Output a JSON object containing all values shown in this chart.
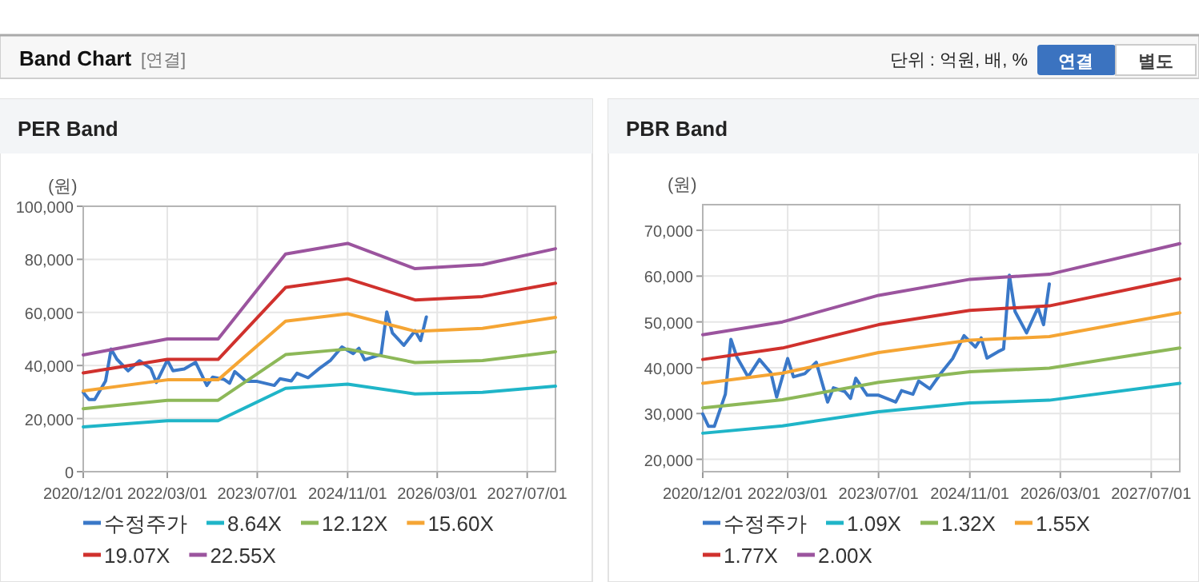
{
  "chart_data": [
    {
      "type": "other",
      "title": "Band Chart",
      "annotations": [
        "[연결]",
        "단위 : 억원, 배, %",
        "연결",
        "별도"
      ]
    },
    {
      "type": "line",
      "title": "PER Band",
      "ylabel": "(원)",
      "grid": true,
      "legend": "bottom",
      "xlim": [
        "2020-12-01",
        "2027-12-01"
      ],
      "xticks": [
        {
          "value": "2020-12-01",
          "label": "2020/12/01"
        },
        {
          "value": "2022-03-01",
          "label": "2022/03/01"
        },
        {
          "value": "2023-07-01",
          "label": "2023/07/01"
        },
        {
          "value": "2024-11-01",
          "label": "2024/11/01"
        },
        {
          "value": "2026-03-01",
          "label": "2026/03/01"
        },
        {
          "value": "2027-07-01",
          "label": "2027/07/01"
        }
      ],
      "ylim": [
        0,
        100000
      ],
      "yticks": [
        0,
        {
          "value": 20000,
          "label": "20,000"
        },
        {
          "value": 40000,
          "label": "40,000"
        },
        {
          "value": 60000,
          "label": "60,000"
        },
        {
          "value": 80000,
          "label": "80,000"
        },
        {
          "value": 100000,
          "label": "100,000"
        }
      ],
      "series": [
        {
          "name": "수정주가",
          "color": "#3a78c8",
          "x": [
            "2020-12",
            "2021-01",
            "2021-02",
            "2021-04",
            "2021-05",
            "2021-06",
            "2021-08",
            "2021-10",
            "2021-12",
            "2022-01",
            "2022-03",
            "2022-04",
            "2022-06",
            "2022-08",
            "2022-10",
            "2022-11",
            "2023-01",
            "2023-02",
            "2023-03",
            "2023-05",
            "2023-07",
            "2023-10",
            "2023-11",
            "2024-01",
            "2024-02",
            "2024-04",
            "2024-06",
            "2024-08",
            "2024-10",
            "2024-12",
            "2025-01",
            "2025-02",
            "2025-04",
            "2025-05",
            "2025-06",
            "2025-07",
            "2025-09",
            "2025-11",
            "2025-12",
            "2026-01"
          ],
          "values": [
            29900,
            27200,
            27200,
            34200,
            46200,
            42400,
            38000,
            41800,
            38900,
            33600,
            42000,
            38000,
            38700,
            41200,
            32500,
            35600,
            34800,
            33300,
            37700,
            34000,
            34000,
            32500,
            35000,
            34200,
            37100,
            35400,
            38900,
            42000,
            47000,
            44500,
            46500,
            42100,
            43500,
            44100,
            60200,
            52300,
            47600,
            53100,
            49400,
            58300
          ]
        },
        {
          "name": "8.64X",
          "color": "#1fb5c8",
          "x": [
            "2020-12",
            "2022-03",
            "2022-12",
            "2023-12",
            "2024-11",
            "2025-11",
            "2026-11",
            "2027-12"
          ],
          "values": [
            16900,
            19200,
            19200,
            31400,
            33000,
            29300,
            29900,
            32200
          ]
        },
        {
          "name": "12.12X",
          "color": "#8db858",
          "x": [
            "2020-12",
            "2022-03",
            "2022-12",
            "2023-12",
            "2024-11",
            "2025-11",
            "2026-11",
            "2027-12"
          ],
          "values": [
            23700,
            26900,
            26900,
            44100,
            46200,
            41100,
            41900,
            45200
          ]
        },
        {
          "name": "15.60X",
          "color": "#f5a534",
          "x": [
            "2020-12",
            "2022-03",
            "2022-12",
            "2023-12",
            "2024-11",
            "2025-11",
            "2026-11",
            "2027-12"
          ],
          "values": [
            30400,
            34600,
            34600,
            56700,
            59500,
            52900,
            54000,
            58100
          ]
        },
        {
          "name": "19.07X",
          "color": "#d0312d",
          "x": [
            "2020-12",
            "2022-03",
            "2022-12",
            "2023-12",
            "2024-11",
            "2025-11",
            "2026-11",
            "2027-12"
          ],
          "values": [
            37200,
            42300,
            42300,
            69400,
            72700,
            64700,
            66000,
            71000
          ]
        },
        {
          "name": "22.55X",
          "color": "#9b549e",
          "x": [
            "2020-12",
            "2022-03",
            "2022-12",
            "2023-12",
            "2024-11",
            "2025-11",
            "2026-11",
            "2027-12"
          ],
          "values": [
            44000,
            50000,
            50000,
            82000,
            86000,
            76500,
            78000,
            84000
          ]
        }
      ]
    },
    {
      "type": "line",
      "title": "PBR Band",
      "ylabel": "(원)",
      "grid": true,
      "legend": "bottom",
      "xlim": [
        "2020-12-01",
        "2027-12-01"
      ],
      "xticks": [
        {
          "value": "2020-12-01",
          "label": "2020/12/01"
        },
        {
          "value": "2022-03-01",
          "label": "2022/03/01"
        },
        {
          "value": "2023-07-01",
          "label": "2023/07/01"
        },
        {
          "value": "2024-11-01",
          "label": "2024/11/01"
        },
        {
          "value": "2026-03-01",
          "label": "2026/03/01"
        },
        {
          "value": "2027-07-01",
          "label": "2027/07/01"
        }
      ],
      "ylim": [
        17300,
        75600
      ],
      "yticks": [
        {
          "value": 20000,
          "label": "20,000"
        },
        {
          "value": 30000,
          "label": "30,000"
        },
        {
          "value": 40000,
          "label": "40,000"
        },
        {
          "value": 50000,
          "label": "50,000"
        },
        {
          "value": 60000,
          "label": "60,000"
        },
        {
          "value": 70000,
          "label": "70,000"
        }
      ],
      "series": [
        {
          "name": "수정주가",
          "color": "#3a78c8",
          "x": [
            "2020-12",
            "2021-01",
            "2021-02",
            "2021-04",
            "2021-05",
            "2021-06",
            "2021-08",
            "2021-10",
            "2021-12",
            "2022-01",
            "2022-03",
            "2022-04",
            "2022-06",
            "2022-08",
            "2022-10",
            "2022-11",
            "2023-01",
            "2023-02",
            "2023-03",
            "2023-05",
            "2023-07",
            "2023-10",
            "2023-11",
            "2024-01",
            "2024-02",
            "2024-04",
            "2024-06",
            "2024-08",
            "2024-10",
            "2024-12",
            "2025-01",
            "2025-02",
            "2025-04",
            "2025-05",
            "2025-06",
            "2025-07",
            "2025-09",
            "2025-11",
            "2025-12",
            "2026-01"
          ],
          "values": [
            29900,
            27200,
            27200,
            34200,
            46200,
            42400,
            38000,
            41800,
            38900,
            33600,
            42000,
            38000,
            38700,
            41200,
            32500,
            35600,
            34800,
            33300,
            37700,
            34000,
            34000,
            32500,
            35000,
            34200,
            37100,
            35400,
            38900,
            42000,
            47000,
            44500,
            46500,
            42100,
            43500,
            44100,
            60200,
            52300,
            47600,
            53100,
            49400,
            58300
          ]
        },
        {
          "name": "1.09X",
          "color": "#1fb5c8",
          "x": [
            "2020-12",
            "2022-02",
            "2023-07",
            "2024-11",
            "2026-01",
            "2027-12"
          ],
          "values": [
            25700,
            27300,
            30400,
            32300,
            32900,
            36600
          ]
        },
        {
          "name": "1.32X",
          "color": "#8db858",
          "x": [
            "2020-12",
            "2022-02",
            "2023-07",
            "2024-11",
            "2026-01",
            "2027-12"
          ],
          "values": [
            31200,
            33000,
            36800,
            39100,
            39900,
            44300
          ]
        },
        {
          "name": "1.55X",
          "color": "#f5a534",
          "x": [
            "2020-12",
            "2022-02",
            "2023-07",
            "2024-11",
            "2026-01",
            "2027-12"
          ],
          "values": [
            36600,
            38800,
            43300,
            46000,
            46800,
            52000
          ]
        },
        {
          "name": "1.77X",
          "color": "#d0312d",
          "x": [
            "2020-12",
            "2022-02",
            "2023-07",
            "2024-11",
            "2026-01",
            "2027-12"
          ],
          "values": [
            41800,
            44300,
            49400,
            52500,
            53500,
            59400
          ]
        },
        {
          "name": "2.00X",
          "color": "#9b549e",
          "x": [
            "2020-12",
            "2022-02",
            "2023-07",
            "2024-11",
            "2026-01",
            "2027-12"
          ],
          "values": [
            47200,
            50000,
            55800,
            59300,
            60400,
            67100
          ]
        }
      ]
    }
  ]
}
